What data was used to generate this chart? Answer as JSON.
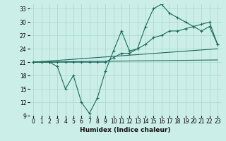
{
  "xlabel": "Humidex (Indice chaleur)",
  "background_color": "#cceee8",
  "grid_color": "#aaddcc",
  "line_color": "#1a6b5a",
  "xlim": [
    -0.5,
    23.5
  ],
  "ylim": [
    9,
    34
  ],
  "xticks": [
    0,
    1,
    2,
    3,
    4,
    5,
    6,
    7,
    8,
    9,
    10,
    11,
    12,
    13,
    14,
    15,
    16,
    17,
    18,
    19,
    20,
    21,
    22,
    23
  ],
  "yticks": [
    9,
    12,
    15,
    18,
    21,
    24,
    27,
    30,
    33
  ],
  "series1_x": [
    0,
    1,
    2,
    3,
    4,
    5,
    6,
    7,
    8,
    9,
    10,
    11,
    12,
    13,
    14,
    15,
    16,
    17,
    18,
    19,
    20,
    21,
    22,
    23
  ],
  "series1_y": [
    21,
    21,
    21,
    20,
    15,
    18,
    12,
    9.5,
    13,
    19,
    23.5,
    28,
    23.5,
    24,
    29,
    33,
    34,
    32,
    31,
    30,
    29,
    28,
    29,
    25
  ],
  "series2_x": [
    0,
    1,
    2,
    3,
    4,
    5,
    6,
    7,
    8,
    9,
    10,
    11,
    12,
    13,
    14,
    15,
    16,
    17,
    18,
    19,
    20,
    21,
    22,
    23
  ],
  "series2_y": [
    21,
    21,
    21,
    21,
    21,
    21,
    21,
    21,
    21,
    21,
    22,
    23,
    23,
    24,
    25,
    26.5,
    27,
    28,
    28,
    28.5,
    29,
    29.5,
    30,
    25
  ],
  "series3_x": [
    0,
    23
  ],
  "series3_y": [
    21,
    24
  ],
  "series4_x": [
    0,
    23
  ],
  "series4_y": [
    21,
    21.5
  ],
  "xlabel_fontsize": 6.5,
  "tick_fontsize": 5.5
}
